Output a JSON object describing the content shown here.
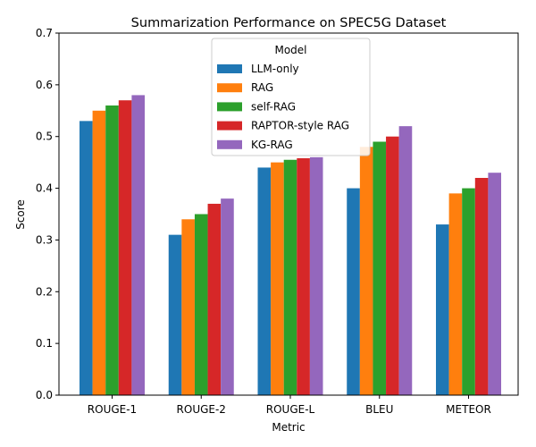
{
  "chart_data": {
    "type": "bar",
    "title": "Summarization Performance on SPEC5G Dataset",
    "xlabel": "Metric",
    "ylabel": "Score",
    "ylim": [
      0,
      0.7
    ],
    "yticks": [
      "0.0",
      "0.1",
      "0.2",
      "0.3",
      "0.4",
      "0.5",
      "0.6",
      "0.7"
    ],
    "categories": [
      "ROUGE-1",
      "ROUGE-2",
      "ROUGE-L",
      "BLEU",
      "METEOR"
    ],
    "legend": {
      "title": "Model",
      "position": "top-center"
    },
    "grid": false,
    "series": [
      {
        "name": "LLM-only",
        "color": "#1f77b4",
        "values": [
          0.53,
          0.31,
          0.44,
          0.4,
          0.33
        ]
      },
      {
        "name": "RAG",
        "color": "#ff7f0e",
        "values": [
          0.55,
          0.34,
          0.45,
          0.48,
          0.39
        ]
      },
      {
        "name": "self-RAG",
        "color": "#2ca02c",
        "values": [
          0.56,
          0.35,
          0.455,
          0.49,
          0.4
        ]
      },
      {
        "name": "RAPTOR-style RAG",
        "color": "#d62728",
        "values": [
          0.57,
          0.37,
          0.458,
          0.5,
          0.42
        ]
      },
      {
        "name": "KG-RAG",
        "color": "#9467bd",
        "values": [
          0.58,
          0.38,
          0.46,
          0.52,
          0.43
        ]
      }
    ]
  }
}
